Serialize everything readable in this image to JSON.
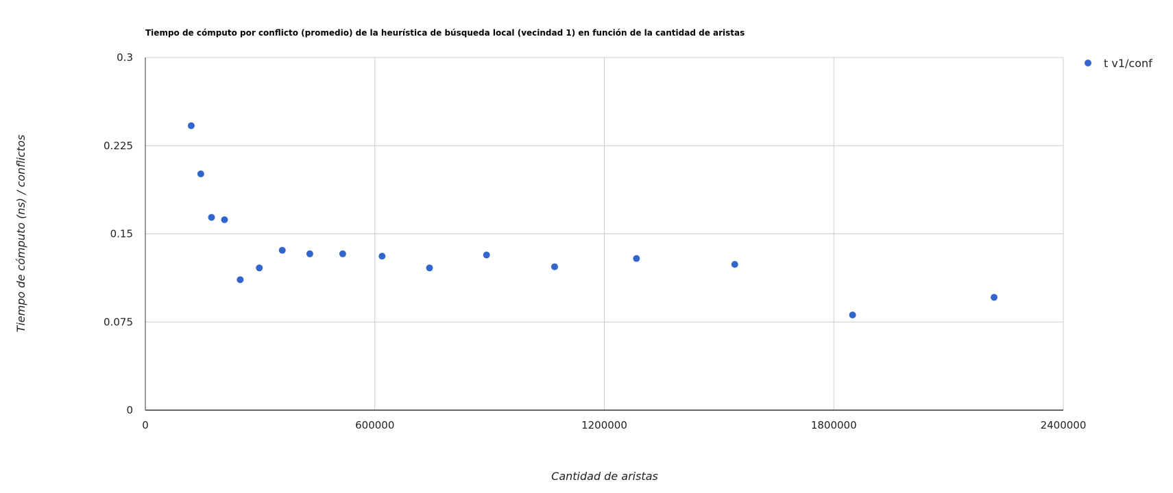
{
  "chart_data": {
    "type": "scatter",
    "title": "Tiempo de cómputo por conflicto (promedio) de la heurística de búsqueda local (vecindad 1) en función de la cantidad de aristas",
    "xlabel": "Cantidad de aristas",
    "ylabel": "Tiempo de cómputo (ns) / conflictos",
    "xlim": [
      0,
      2400000
    ],
    "ylim": [
      0,
      0.3
    ],
    "x_ticks": [
      "0",
      "600000",
      "1200000",
      "1800000",
      "2400000"
    ],
    "y_ticks": [
      "0",
      "0.075",
      "0.15",
      "0.225",
      "0.3"
    ],
    "grid": true,
    "legend_position": "top-right",
    "series": [
      {
        "name": "t v1/conf",
        "color": "#3366cc",
        "points": [
          {
            "x": 120000,
            "y": 0.242
          },
          {
            "x": 145000,
            "y": 0.201
          },
          {
            "x": 173000,
            "y": 0.164
          },
          {
            "x": 207000,
            "y": 0.162
          },
          {
            "x": 248000,
            "y": 0.111
          },
          {
            "x": 298000,
            "y": 0.121
          },
          {
            "x": 358000,
            "y": 0.136
          },
          {
            "x": 430000,
            "y": 0.133
          },
          {
            "x": 516000,
            "y": 0.133
          },
          {
            "x": 619000,
            "y": 0.131
          },
          {
            "x": 743000,
            "y": 0.121
          },
          {
            "x": 892000,
            "y": 0.132
          },
          {
            "x": 1070000,
            "y": 0.122
          },
          {
            "x": 1284000,
            "y": 0.129
          },
          {
            "x": 1541000,
            "y": 0.124
          },
          {
            "x": 1849000,
            "y": 0.081
          },
          {
            "x": 2219000,
            "y": 0.096
          }
        ]
      }
    ]
  }
}
